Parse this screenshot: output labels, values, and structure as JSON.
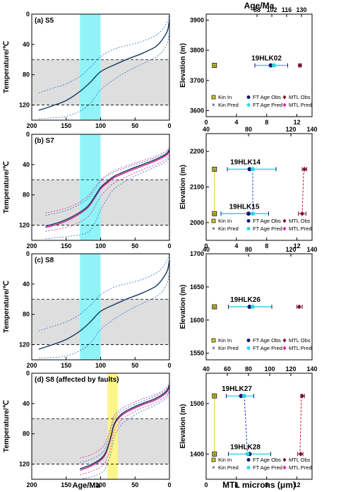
{
  "colors": {
    "cyan_window": "#8ff3f7",
    "yellow_window": "#fbf58a",
    "pta_band": "#dedede",
    "thermal_line": "#163a63",
    "envelope_blue": "#2f6fd0",
    "envelope_magenta": "#d13090",
    "ft_obs": "#16166e",
    "ft_pred": "#2ed6e6",
    "mtl_obs": "#7a1230",
    "mtl_pred": "#e020b0",
    "kin_in": "#d8d020",
    "dashed_link_blue": "#2a3ad0",
    "dashed_link_red": "#d01818"
  },
  "chart_data": [
    {
      "type": "line",
      "panel": "(a) S5",
      "xlabel": "",
      "ylabel": "Temperature/℃",
      "xlim": [
        200,
        0
      ],
      "ylim": [
        0,
        140
      ],
      "x_ticks": [
        "200",
        "150",
        "100",
        "50",
        "0"
      ],
      "y_ticks": [
        "0",
        "40",
        "80",
        "120"
      ],
      "highlight_window": [
        130,
        100
      ],
      "pta_zone": [
        60,
        120
      ],
      "series": [
        {
          "role": "best",
          "x": [
            190,
            170,
            150,
            130,
            115,
            100,
            80,
            60,
            40,
            20,
            10,
            3,
            0
          ],
          "y": [
            127,
            121,
            114,
            102,
            90,
            76,
            67,
            59,
            52,
            43,
            33,
            22,
            8
          ]
        },
        {
          "role": "upper",
          "x": [
            190,
            170,
            150,
            130,
            115,
            100,
            80,
            60,
            40,
            20,
            10,
            3,
            0
          ],
          "y": [
            104,
            98,
            92,
            82,
            70,
            56,
            46,
            41,
            36,
            28,
            20,
            10,
            0
          ]
        },
        {
          "role": "lower",
          "x": [
            190,
            170,
            150,
            130,
            115,
            100,
            80,
            60,
            40,
            20,
            10,
            3,
            0
          ],
          "y": [
            138,
            137,
            135,
            128,
            118,
            100,
            86,
            75,
            66,
            57,
            49,
            38,
            24
          ]
        }
      ]
    },
    {
      "type": "scatter",
      "panel": "S5-elevation",
      "x_top_label": "Age/Ma",
      "x_top_lim": [
        40,
        140
      ],
      "x_top_ticks": [
        "88",
        "102",
        "116",
        "130"
      ],
      "x_bottom_lim": [
        0,
        14
      ],
      "x_bottom_ticks": [
        "0",
        "4",
        "8",
        "12"
      ],
      "ylabel": "Elevation (m)",
      "ylim": [
        3580,
        3920
      ],
      "y_ticks": [
        "3600",
        "3700",
        "3800",
        "3900"
      ],
      "samples": [
        {
          "label": "19HLK02",
          "elevation": 3750,
          "ft_obs_age": 101,
          "ft_err": [
            86,
            117
          ],
          "ft_pred_age": 104,
          "mtl_obs": 12.4,
          "mtl_err": [
            12.2,
            12.6
          ],
          "mtl_pred": 12.3,
          "kin": 1.1
        }
      ],
      "legend": [
        "Kin In",
        "Kin Pred",
        "FT Age Obs",
        "FT Age Pred",
        "MTL Obs",
        "MTL Pred"
      ]
    },
    {
      "type": "line",
      "panel": "(b) S7",
      "ylabel": "Temperature/℃",
      "xlim": [
        200,
        0
      ],
      "ylim": [
        0,
        140
      ],
      "x_ticks": [
        "200",
        "150",
        "100",
        "50",
        "0"
      ],
      "y_ticks": [
        "0",
        "40",
        "80",
        "120"
      ],
      "highlight_window": [
        130,
        100
      ],
      "pta_zone": [
        60,
        120
      ]
    },
    {
      "type": "scatter",
      "panel": "S7-elevation",
      "x_top_lim": [
        40,
        140
      ],
      "x_top_ticks": [
        "40",
        "80",
        "120",
        "140"
      ],
      "x_bottom_lim": [
        0,
        14
      ],
      "x_bottom_ticks": [
        "0",
        "4",
        "8",
        "12"
      ],
      "ylabel": "Elevation (m)",
      "ylim": [
        1950,
        2250
      ],
      "y_ticks": [
        "2000",
        "2100",
        "2200"
      ],
      "samples": [
        {
          "label": "19HLK14",
          "elevation": 2150,
          "ft_obs_age": 81,
          "ft_err": [
            60,
            106
          ],
          "ft_pred_age": 84,
          "mtl_obs": 13.0,
          "mtl_err": [
            12.7,
            13.3
          ],
          "mtl_pred": 12.9,
          "kin": 1.1
        },
        {
          "label": "19HLK15",
          "elevation": 2025,
          "ft_obs_age": 80,
          "ft_err": [
            54,
            99
          ],
          "ft_pred_age": 84,
          "mtl_obs": 12.7,
          "mtl_err": [
            12.2,
            13.2
          ],
          "mtl_pred": 12.7,
          "kin": 1.1
        }
      ]
    },
    {
      "type": "line",
      "panel": "(c) S8",
      "ylabel": "Temperature/℃",
      "xlim": [
        200,
        0
      ],
      "ylim": [
        0,
        140
      ],
      "x_ticks": [
        "200",
        "150",
        "100",
        "50",
        "0"
      ],
      "y_ticks": [
        "0",
        "40",
        "80",
        "120"
      ],
      "highlight_window": [
        130,
        100
      ],
      "pta_zone": [
        60,
        120
      ]
    },
    {
      "type": "scatter",
      "panel": "S8-elevation",
      "x_top_lim": [
        40,
        140
      ],
      "x_top_ticks": [
        "40",
        "80",
        "120",
        "140"
      ],
      "x_bottom_lim": [
        0,
        14
      ],
      "ylabel": "Elevation (m)",
      "ylim": [
        1540,
        1700
      ],
      "y_ticks": [
        "1550",
        "1600",
        "1650",
        "1700"
      ],
      "samples": [
        {
          "label": "19HLK26",
          "elevation": 1620,
          "ft_obs_age": 81,
          "ft_err": [
            61,
            102
          ],
          "ft_pred_age": 84,
          "mtl_obs": 12.3,
          "mtl_err": [
            12.0,
            12.7
          ],
          "mtl_pred": 12.2,
          "kin": 1.1
        }
      ]
    },
    {
      "type": "line",
      "panel": "(d) S8 (affected by faults)",
      "xlabel": "Age/Ma",
      "ylabel": "Temperature/℃",
      "xlim": [
        200,
        0
      ],
      "ylim": [
        0,
        140
      ],
      "x_ticks": [
        "200",
        "150",
        "100",
        "50",
        "0"
      ],
      "y_ticks": [
        "0",
        "40",
        "80",
        "120"
      ],
      "highlight_window": [
        90,
        75
      ],
      "pta_zone": [
        60,
        120
      ]
    },
    {
      "type": "scatter",
      "panel": "S8-faulted-elevation",
      "x_top_lim": [
        40,
        140
      ],
      "x_top_ticks": [
        "40",
        "60",
        "80",
        "100",
        "120",
        "140"
      ],
      "xlabel": "MTL microns (μm)",
      "x_bottom_lim": [
        0,
        14
      ],
      "x_bottom_ticks": [
        "0",
        "4",
        "8",
        "12"
      ],
      "ylabel": "Elevation (m)",
      "ylim": [
        1350,
        1560
      ],
      "y_ticks": [
        "1400",
        "1500"
      ],
      "samples": [
        {
          "label": "19HLK27",
          "elevation": 1515,
          "ft_obs_age": 73,
          "ft_err": [
            59,
            85
          ],
          "ft_pred_age": 76,
          "mtl_obs": 12.7,
          "mtl_err": [
            12.5,
            13.0
          ],
          "mtl_pred": 12.6,
          "kin": 1.1
        },
        {
          "label": "19HLK28",
          "elevation": 1400,
          "ft_obs_age": 81,
          "ft_err": [
            61,
            101
          ],
          "ft_pred_age": 79,
          "mtl_obs": 12.5,
          "mtl_err": [
            12.1,
            12.8
          ],
          "mtl_pred": 12.4,
          "kin": 1.1
        }
      ]
    }
  ]
}
